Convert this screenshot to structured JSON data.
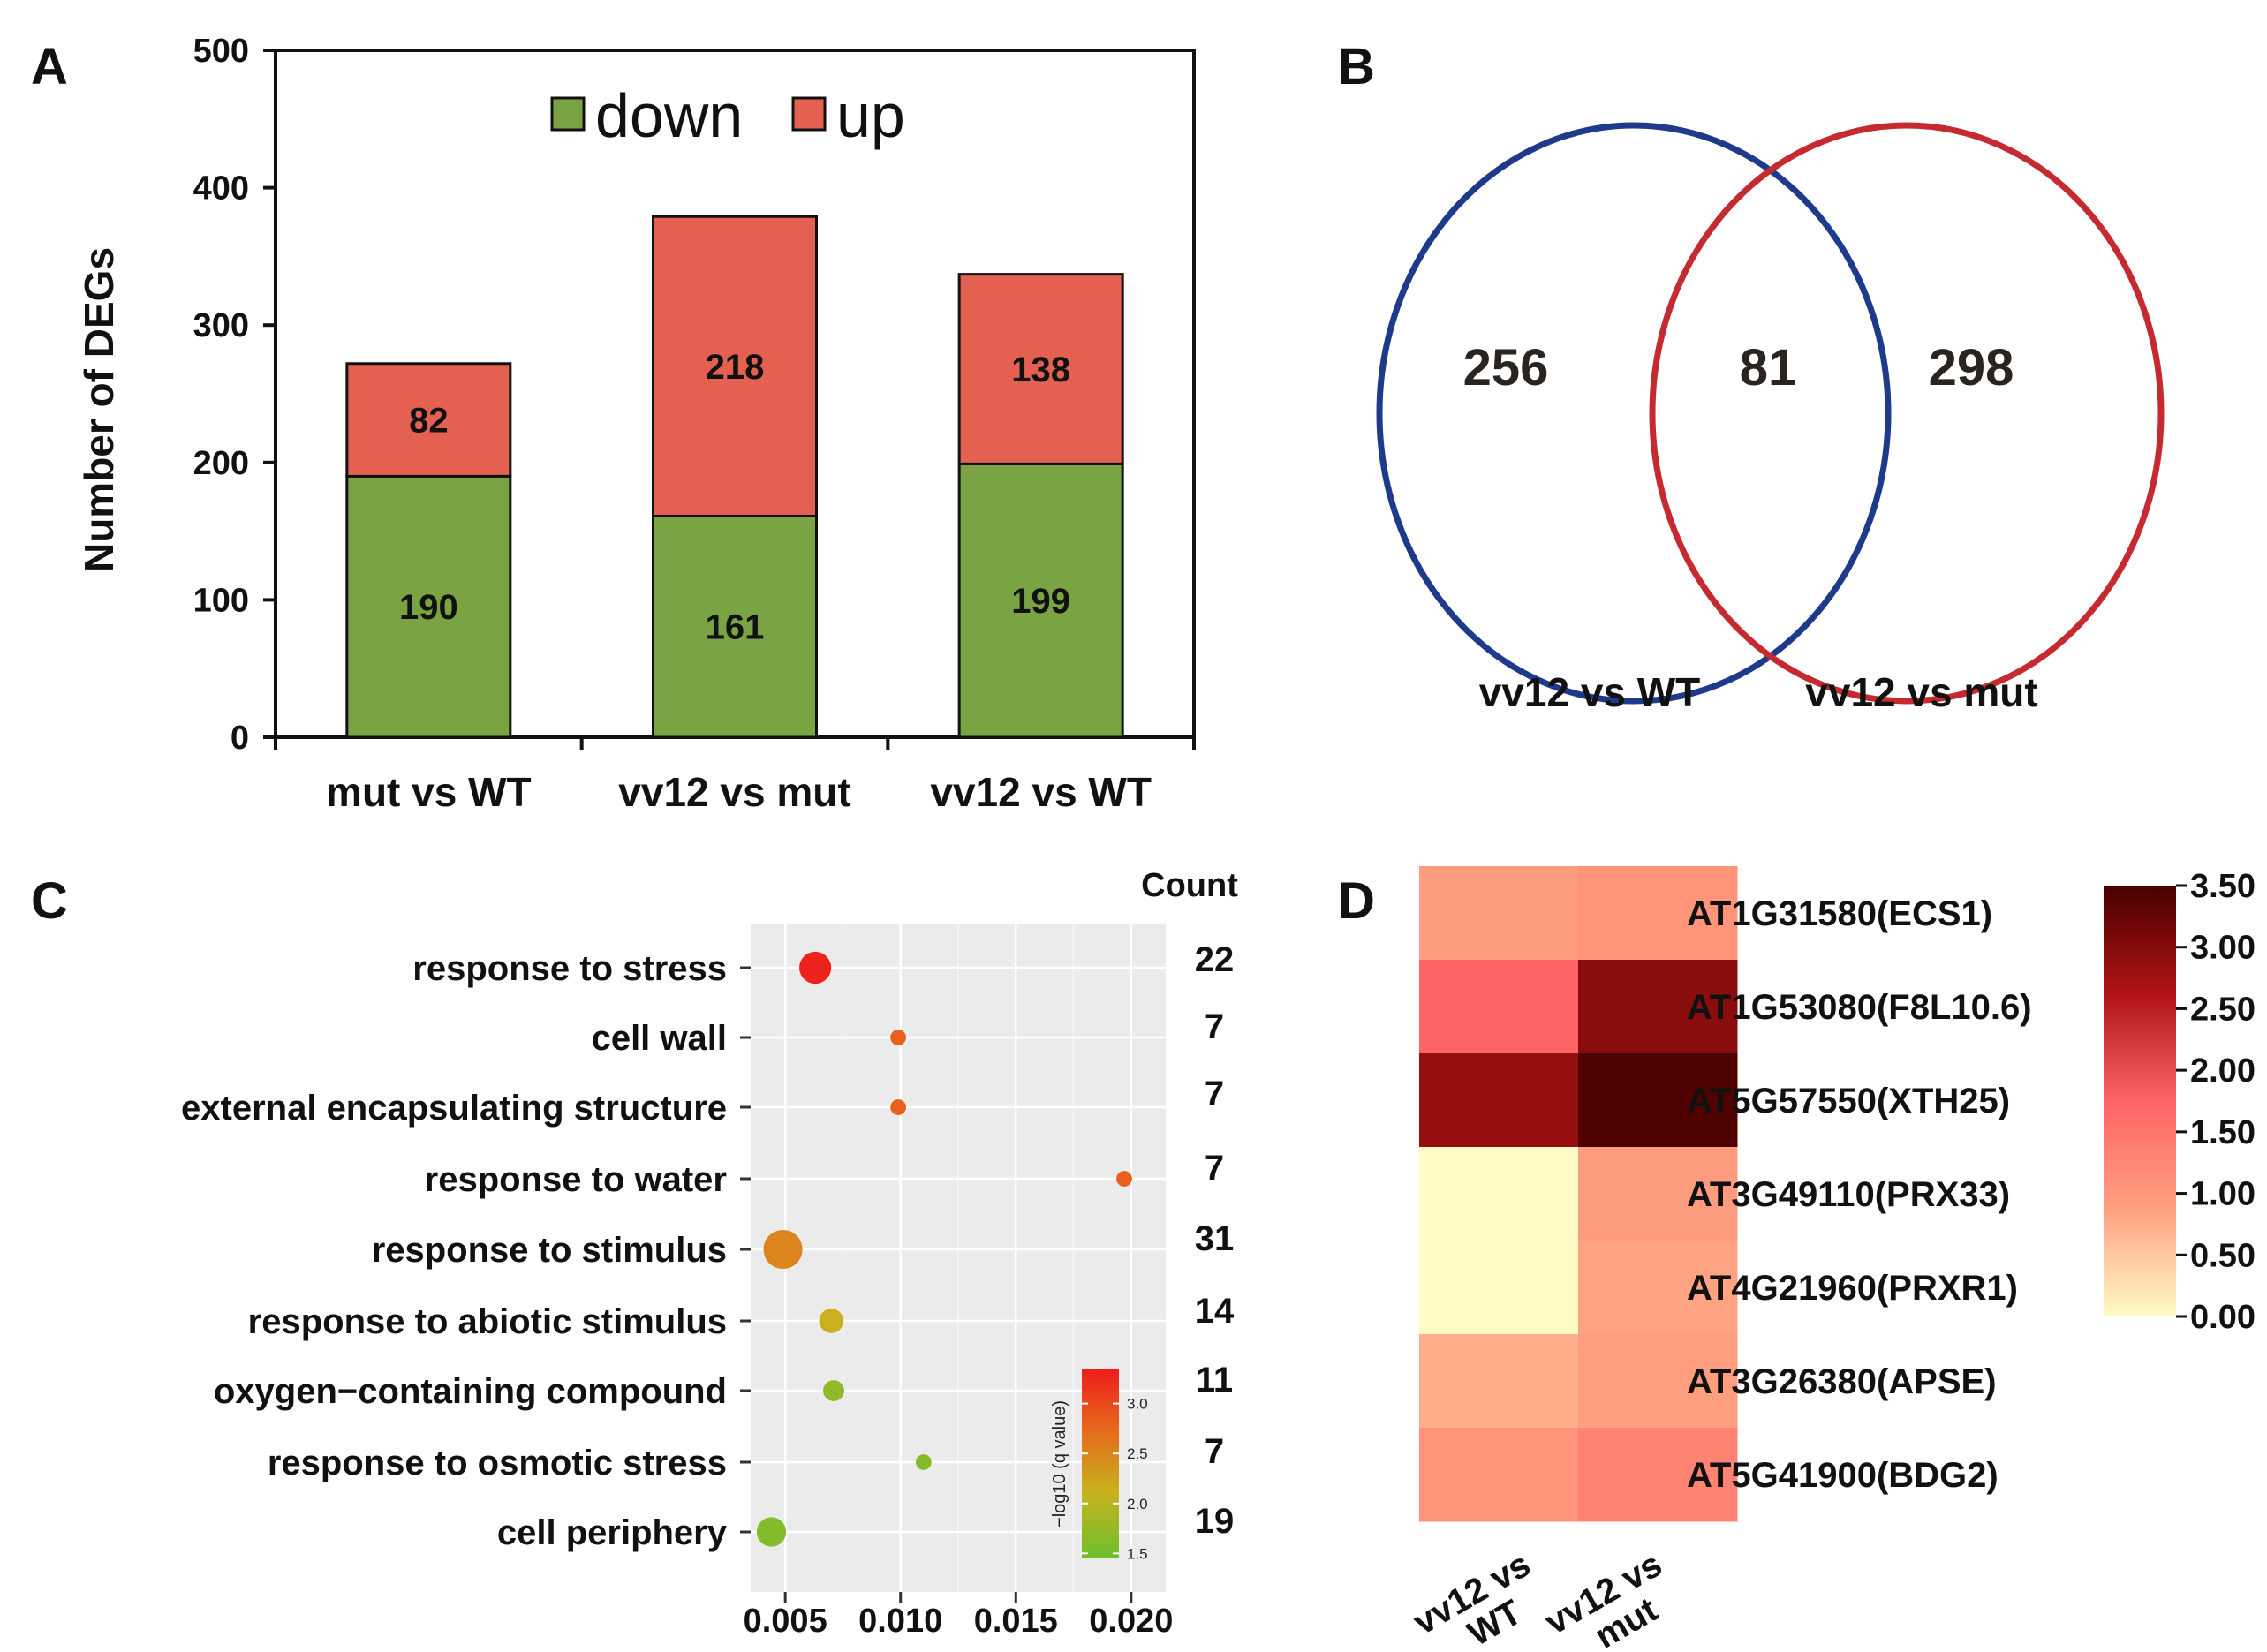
{
  "panels": {
    "a": "A",
    "b": "B",
    "c": "C",
    "d": "D"
  },
  "chart_data": [
    {
      "type": "bar",
      "stacked": true,
      "title": "",
      "xlabel": "",
      "ylabel": "Number of DEGs",
      "ylim": [
        0,
        500
      ],
      "yticks": [
        "0",
        "100",
        "200",
        "300",
        "400",
        "500"
      ],
      "categories": [
        "mut vs WT",
        "vv12 vs mut",
        "vv12 vs WT"
      ],
      "series": [
        {
          "name": "down",
          "color": "#7aa444",
          "values": [
            190,
            161,
            199
          ],
          "labels": [
            "190",
            "161",
            "199"
          ]
        },
        {
          "name": "up",
          "color": "#e46151",
          "values": [
            82,
            218,
            138
          ],
          "labels": [
            "82",
            "218",
            "138"
          ]
        }
      ],
      "legend": "top-center"
    },
    {
      "type": "venn",
      "sets": [
        {
          "name": "vv12 vs WT",
          "color": "#1e3a8a",
          "only": "256"
        },
        {
          "name": "vv12 vs mut",
          "color": "#c42a30",
          "only": "298"
        }
      ],
      "intersection": "81"
    },
    {
      "type": "scatter",
      "subtype": "bubble",
      "xlim": [
        0.0035,
        0.0215
      ],
      "xticks": [
        0.005,
        0.01,
        0.015,
        0.02
      ],
      "xtick_labels": [
        "0.005",
        "0.010",
        "0.015",
        "0.020"
      ],
      "count_title": "Count",
      "terms": [
        {
          "term": "response to stress",
          "x": 0.0063,
          "count": 22,
          "count_label": "22",
          "q": 3.3
        },
        {
          "term": "cell wall",
          "x": 0.0099,
          "count": 7,
          "count_label": "7",
          "q": 2.75
        },
        {
          "term": "external encapsulating structure",
          "x": 0.0099,
          "count": 7,
          "count_label": "7",
          "q": 2.75
        },
        {
          "term": "response to water",
          "x": 0.0197,
          "count": 7,
          "count_label": "7",
          "q": 2.75
        },
        {
          "term": "response to stimulus",
          "x": 0.0049,
          "count": 31,
          "count_label": "31",
          "q": 2.45
        },
        {
          "term": "response to abiotic stimulus",
          "x": 0.007,
          "count": 14,
          "count_label": "14",
          "q": 2.1
        },
        {
          "term": "oxygen−containing compound",
          "x": 0.0071,
          "count": 11,
          "count_label": "11",
          "q": 1.7
        },
        {
          "term": "response to osmotic stress",
          "x": 0.011,
          "count": 7,
          "count_label": "7",
          "q": 1.6
        },
        {
          "term": "cell periphery",
          "x": 0.0044,
          "count": 19,
          "count_label": "19",
          "q": 1.6
        }
      ],
      "colorbar": {
        "title": "−log10 (q value)",
        "range": [
          1.45,
          3.35
        ],
        "ticks": [
          1.5,
          2.0,
          2.5,
          3.0
        ],
        "tick_labels": [
          "1.5",
          "2.0",
          "2.5",
          "3.0"
        ],
        "colors": [
          "#6cbf2e",
          "#c8b21c",
          "#e8641c",
          "#ee1c1c"
        ]
      }
    },
    {
      "type": "heatmap",
      "columns": [
        [
          "vv12 vs",
          "WT"
        ],
        [
          "vv12 vs",
          "mut"
        ]
      ],
      "rows": [
        "AT1G31580(ECS1)",
        "AT1G53080(F8L10.6)",
        "AT5G57550(XTH25)",
        "AT3G49110(PRX33)",
        "AT4G21960(PRXR1)",
        "AT3G26380(APSE)",
        "AT5G41900(BDG2)"
      ],
      "values": [
        [
          0.95,
          1.05
        ],
        [
          1.75,
          2.95
        ],
        [
          2.85,
          3.45
        ],
        [
          0.0,
          0.95
        ],
        [
          0.0,
          0.85
        ],
        [
          0.75,
          0.9
        ],
        [
          1.05,
          1.3
        ]
      ],
      "colorbar": {
        "range": [
          0,
          3.5
        ],
        "ticks": [
          0,
          0.5,
          1.0,
          1.5,
          2.0,
          2.5,
          3.0,
          3.5
        ],
        "tick_labels": [
          "0.00",
          "0.50",
          "1.00",
          "1.50",
          "2.00",
          "2.50",
          "3.00",
          "3.50"
        ],
        "colors": [
          "#fffbc6",
          "#ffa080",
          "#ff6464",
          "#b01414",
          "#4a0000"
        ]
      }
    }
  ]
}
